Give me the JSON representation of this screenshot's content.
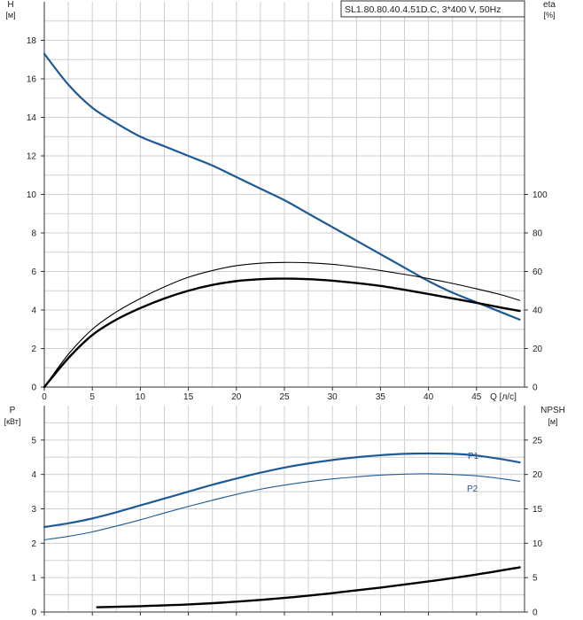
{
  "header": {
    "model": "SL1.80.80.40.4.51D.C, 3*400 V, 50Hz"
  },
  "colors": {
    "blue": "#1f5a96",
    "black": "#000000",
    "grid": "#cfcfcf"
  },
  "chart_data": [
    {
      "type": "line",
      "title": "",
      "xlabel": "Q [л/с]",
      "xlim": [
        0,
        50
      ],
      "xticks": [
        0,
        5,
        10,
        15,
        20,
        25,
        30,
        35,
        40,
        45
      ],
      "grid": true,
      "y_left": {
        "label": "H",
        "unit": "[м]",
        "lim": [
          0,
          20
        ],
        "ticks": [
          0,
          2,
          4,
          6,
          8,
          10,
          12,
          14,
          16,
          18
        ]
      },
      "y_right": {
        "label": "eta",
        "unit": "[%]",
        "lim": [
          0,
          200
        ],
        "ticks": [
          0,
          20,
          40,
          60,
          80,
          100
        ]
      },
      "series": [
        {
          "name": "",
          "axis": "left",
          "color": "#1f5a96",
          "width": 2.2,
          "x": [
            0,
            2.5,
            5,
            7.5,
            10,
            12.5,
            15,
            17.5,
            20,
            22.5,
            25,
            27.5,
            30,
            32.5,
            35,
            37.5,
            40,
            42.5,
            45,
            47.5,
            49.5
          ],
          "y": [
            17.3,
            15.7,
            14.5,
            13.7,
            13.0,
            12.5,
            12.0,
            11.5,
            10.9,
            10.3,
            9.7,
            9.0,
            8.3,
            7.6,
            6.9,
            6.2,
            5.5,
            4.9,
            4.4,
            3.9,
            3.5
          ]
        },
        {
          "name": "",
          "axis": "right",
          "color": "#000000",
          "width": 1.1,
          "x": [
            0,
            2.5,
            5,
            7.5,
            10,
            12.5,
            15,
            17.5,
            20,
            22.5,
            25,
            27.5,
            30,
            32.5,
            35,
            37.5,
            40,
            42.5,
            45,
            47.5,
            49.5
          ],
          "y": [
            0,
            17,
            30,
            39,
            46,
            52,
            57,
            60.5,
            63,
            64.3,
            64.7,
            64.5,
            63.7,
            62.3,
            60.5,
            58.5,
            56.3,
            53.8,
            51,
            48,
            45
          ]
        },
        {
          "name": "",
          "axis": "right",
          "color": "#000000",
          "width": 2.4,
          "x": [
            0,
            2.5,
            5,
            7.5,
            10,
            12.5,
            15,
            17.5,
            20,
            22.5,
            25,
            27.5,
            30,
            32.5,
            35,
            37.5,
            40,
            42.5,
            45,
            47.5,
            49.5
          ],
          "y": [
            0,
            15,
            27,
            35,
            41,
            46,
            50,
            53,
            55,
            56,
            56.3,
            56,
            55.2,
            54,
            52.5,
            50.5,
            48.3,
            46,
            43.7,
            41.3,
            39.5
          ]
        }
      ]
    },
    {
      "type": "line",
      "title": "",
      "xlabel": "",
      "xlim": [
        0,
        50
      ],
      "xticks": [
        0,
        5,
        10,
        15,
        20,
        25,
        30,
        35,
        40,
        45
      ],
      "grid": true,
      "y_left": {
        "label": "P",
        "unit": "[кВт]",
        "lim": [
          0,
          6
        ],
        "ticks": [
          0,
          1,
          2,
          3,
          4,
          5
        ]
      },
      "y_right": {
        "label": "NPSH",
        "unit": "[м]",
        "lim": [
          0,
          30
        ],
        "ticks": [
          0,
          5,
          10,
          15,
          20,
          25
        ]
      },
      "series": [
        {
          "name": "P1",
          "axis": "left",
          "color": "#1f5a96",
          "width": 2.2,
          "x": [
            0,
            2.5,
            5,
            7.5,
            10,
            12.5,
            15,
            17.5,
            20,
            22.5,
            25,
            27.5,
            30,
            32.5,
            35,
            37.5,
            40,
            42.5,
            45,
            47.5,
            49.5
          ],
          "y": [
            2.47,
            2.58,
            2.72,
            2.9,
            3.1,
            3.3,
            3.5,
            3.7,
            3.88,
            4.05,
            4.2,
            4.32,
            4.42,
            4.5,
            4.56,
            4.6,
            4.61,
            4.6,
            4.55,
            4.45,
            4.35
          ]
        },
        {
          "name": "P2",
          "axis": "left",
          "color": "#1f5a96",
          "width": 1.1,
          "x": [
            0,
            2.5,
            5,
            7.5,
            10,
            12.5,
            15,
            17.5,
            20,
            22.5,
            25,
            27.5,
            30,
            32.5,
            35,
            37.5,
            40,
            42.5,
            45,
            47.5,
            49.5
          ],
          "y": [
            2.1,
            2.2,
            2.33,
            2.5,
            2.68,
            2.88,
            3.07,
            3.25,
            3.42,
            3.57,
            3.69,
            3.79,
            3.87,
            3.93,
            3.98,
            4.01,
            4.02,
            4.0,
            3.96,
            3.88,
            3.8
          ]
        },
        {
          "name": "",
          "axis": "right",
          "color": "#000000",
          "width": 2.4,
          "x": [
            5.5,
            10,
            15,
            20,
            25,
            30,
            35,
            40,
            45,
            49.5
          ],
          "y": [
            0.7,
            0.85,
            1.1,
            1.5,
            2.05,
            2.75,
            3.55,
            4.45,
            5.45,
            6.5
          ]
        }
      ]
    }
  ]
}
